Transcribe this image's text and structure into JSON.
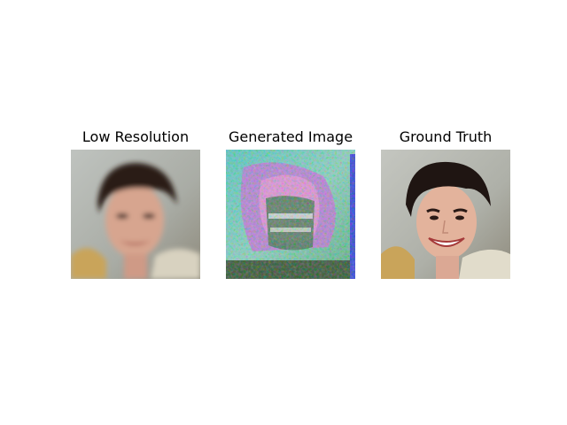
{
  "panels": [
    {
      "title": "Low Resolution"
    },
    {
      "title": "Generated Image"
    },
    {
      "title": "Ground Truth"
    }
  ]
}
